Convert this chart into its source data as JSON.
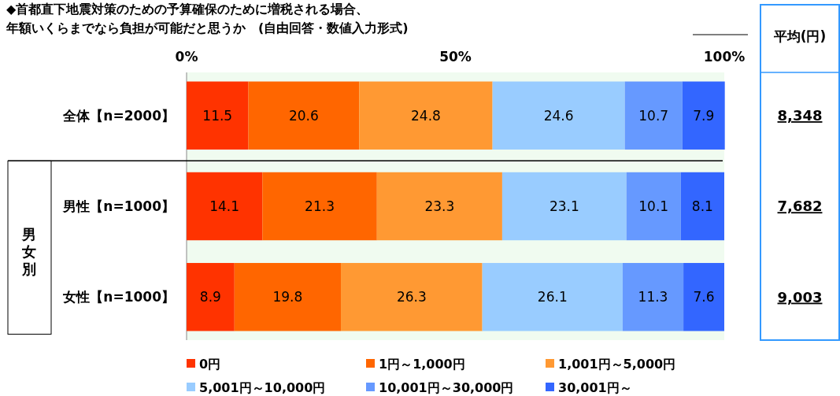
{
  "chart_data": {
    "type": "bar",
    "orientation": "horizontal",
    "stacked": true,
    "title": "◆首都直下地震対策のための予算確保のために増税される場合、年額いくらまでなら負担が可能だと思うか　(自由回答・数値入力形式)",
    "categories": [
      "全体【n=2000】",
      "男性【n=1000】",
      "女性【n=1000】"
    ],
    "series": [
      {
        "name": "0円",
        "color": "#ff3300",
        "values": [
          11.5,
          14.1,
          8.9
        ]
      },
      {
        "name": "1円～1,000円",
        "color": "#ff6600",
        "values": [
          20.6,
          21.3,
          19.8
        ]
      },
      {
        "name": "1,001円～5,000円",
        "color": "#ff9933",
        "values": [
          24.8,
          23.3,
          26.3
        ]
      },
      {
        "name": "5,001円～10,000円",
        "color": "#99ccff",
        "values": [
          24.6,
          23.1,
          26.1
        ]
      },
      {
        "name": "10,001円～30,000円",
        "color": "#6699ff",
        "values": [
          10.7,
          10.1,
          11.3
        ]
      },
      {
        "name": "30,001円～",
        "color": "#3366ff",
        "values": [
          7.9,
          8.1,
          7.6
        ]
      }
    ],
    "xlim": [
      0,
      100
    ],
    "xticks": [
      {
        "value": 0,
        "label": "0%"
      },
      {
        "value": 50,
        "label": "50%"
      },
      {
        "value": 100,
        "label": "100%"
      }
    ],
    "data_labels": true,
    "legend": "bottom",
    "annotations": [
      "男女別",
      "平均(円)",
      "8,348",
      "7,682",
      "9,003"
    ]
  }
}
